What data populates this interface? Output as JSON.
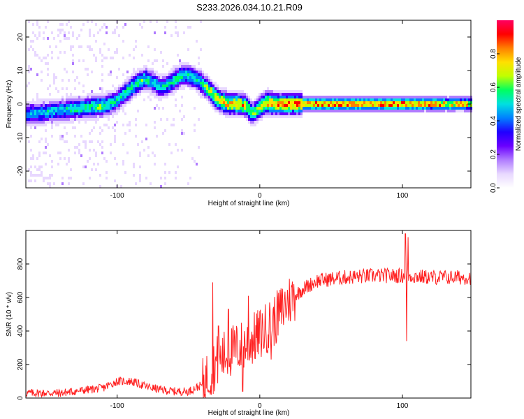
{
  "title": "S233.2026.034.10.21.R09",
  "colors": {
    "signal_line": "#ff2020",
    "axis": "#000000",
    "cmap": [
      "#ffffff",
      "#e8d8ff",
      "#b07cff",
      "#6a00ff",
      "#2000ff",
      "#0080ff",
      "#00e0e0",
      "#00ff60",
      "#c0ff00",
      "#ffe000",
      "#ff8000",
      "#ff0000",
      "#ff0060"
    ]
  },
  "chart_data": [
    {
      "id": "spectrogram",
      "type": "heatmap",
      "xlabel": "Height of straight line (km)",
      "ylabel": "Frequency (Hz)",
      "xlim": [
        -164,
        148
      ],
      "ylim": [
        -25,
        25
      ],
      "xticks": [
        -100,
        0,
        100
      ],
      "yticks": [
        -20,
        -10,
        0,
        10,
        20
      ],
      "colorbar": {
        "label": "Normalized spectral amplitude",
        "range": [
          0,
          1
        ],
        "ticks": [
          0.0,
          0.2,
          0.4,
          0.6,
          0.8
        ]
      },
      "ridge": {
        "x": [
          -164,
          -150,
          -140,
          -130,
          -120,
          -110,
          -100,
          -95,
          -90,
          -85,
          -80,
          -75,
          -70,
          -65,
          -60,
          -55,
          -50,
          -45,
          -40,
          -35,
          -30,
          -25,
          -20,
          -15,
          -10,
          -5,
          0,
          5,
          10,
          20,
          40,
          60,
          80,
          100,
          120,
          148
        ],
        "freq": [
          -3,
          -2.5,
          -2,
          -1.5,
          -1,
          -0.5,
          1,
          3,
          5,
          6.5,
          7.5,
          6.5,
          5,
          5.5,
          7,
          8.5,
          8.5,
          7.5,
          6,
          4,
          1.5,
          0.5,
          0,
          0,
          -0.5,
          -3,
          -1,
          0.5,
          0,
          0,
          0,
          0,
          0,
          0,
          0,
          0
        ],
        "amplitude": [
          0.45,
          0.5,
          0.5,
          0.55,
          0.55,
          0.6,
          0.5,
          0.55,
          0.55,
          0.6,
          0.55,
          0.5,
          0.5,
          0.5,
          0.55,
          0.55,
          0.55,
          0.5,
          0.55,
          0.65,
          0.75,
          0.8,
          0.75,
          0.8,
          0.75,
          0.6,
          0.7,
          0.8,
          0.8,
          0.85,
          0.85,
          0.85,
          0.85,
          0.85,
          0.85,
          0.75
        ]
      }
    },
    {
      "id": "snr",
      "type": "line",
      "xlabel": "Height of straight line (km)",
      "ylabel": "SNR (10 * v/v)",
      "xlim": [
        -164,
        148
      ],
      "ylim": [
        0,
        1000
      ],
      "xticks": [
        -100,
        0,
        100
      ],
      "yticks": [
        0,
        200,
        400,
        600,
        800
      ],
      "trend": {
        "x": [
          -164,
          -140,
          -120,
          -110,
          -100,
          -90,
          -80,
          -70,
          -60,
          -50,
          -40,
          -35,
          -30,
          -20,
          -10,
          0,
          10,
          20,
          30,
          40,
          60,
          80,
          100,
          120,
          148
        ],
        "y": [
          30,
          30,
          50,
          60,
          100,
          100,
          70,
          50,
          40,
          40,
          80,
          150,
          220,
          280,
          320,
          380,
          460,
          580,
          650,
          700,
          720,
          730,
          730,
          720,
          720
        ]
      },
      "spikes": [
        {
          "x": -33,
          "y": 690
        },
        {
          "x": -29,
          "y": 430
        },
        {
          "x": -22,
          "y": 530
        },
        {
          "x": -12,
          "y": 40
        },
        {
          "x": -8,
          "y": 610
        },
        {
          "x": 8,
          "y": 230
        },
        {
          "x": 102,
          "y": 980
        },
        {
          "x": 103,
          "y": 340
        },
        {
          "x": 104,
          "y": 960
        }
      ]
    }
  ]
}
